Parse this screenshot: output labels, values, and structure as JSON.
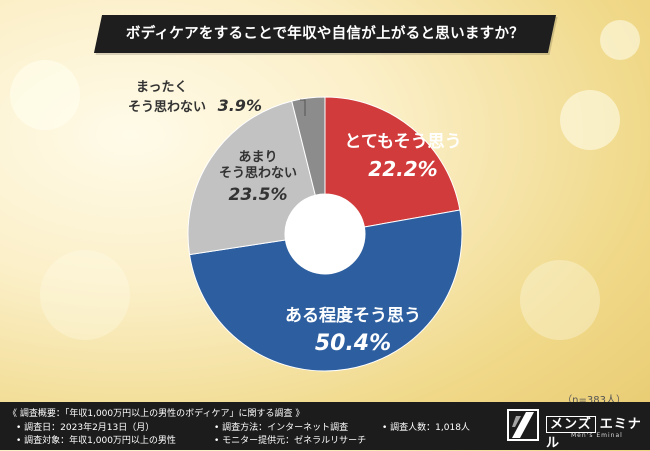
{
  "title": "ボディケアをすることで年収や自信が上がると思いますか？",
  "chart_data": {
    "type": "pie",
    "donut": true,
    "title": "ボディケアをすることで年収や自信が上がると思いますか？",
    "slices": [
      {
        "label": "とてもそう思う",
        "value": 22.2,
        "display": "22.2%",
        "color": "#d23b3b"
      },
      {
        "label": "ある程度そう思う",
        "value": 50.4,
        "display": "50.4%",
        "color": "#2d5fa0"
      },
      {
        "label": "あまりそう思わない",
        "label_lines": [
          "あまり",
          "そう思わない"
        ],
        "value": 23.5,
        "display": "23.5%",
        "color": "#c2c2c2"
      },
      {
        "label": "まったくそう思わない",
        "label_lines": [
          "まったく",
          "そう思わない"
        ],
        "value": 3.9,
        "display": "3.9%",
        "color": "#8c8c8c"
      }
    ],
    "start": "12 o'clock",
    "direction": "clockwise"
  },
  "sample_note": "（n=383人）",
  "footer": {
    "heading": "《 調査概要：「年収1,000万円以上の男性のボディケア」に関する調査 》",
    "date": "• 調査日：2023年2月13日（月）",
    "target": "• 調査対象：年収1,000万円以上の男性",
    "method": "• 調査方法：インターネット調査",
    "provider": "• モニター提供元：ゼネラルリサーチ",
    "count": "• 調査人数：1,018人",
    "logo_boxed": "メンズ",
    "logo_name": "エミナル",
    "logo_sub": "Men's Eminal"
  }
}
